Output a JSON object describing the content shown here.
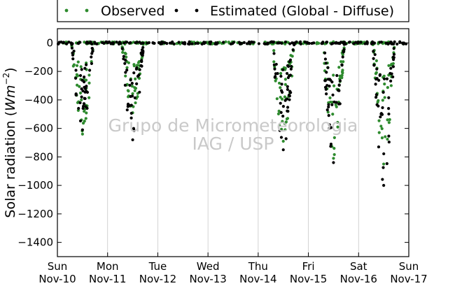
{
  "chart_data": {
    "type": "scatter",
    "title": "",
    "xlabel": "",
    "ylabel": "Solar radiation (Wm^-2)",
    "ylabel_parts": {
      "text": "Solar radiation (",
      "unit": "Wm",
      "exp": "−2",
      "close": ")"
    },
    "ylim": [
      -1500,
      100
    ],
    "xlim": [
      "2013-11-10",
      "2013-11-17"
    ],
    "grid": "vertical",
    "legend_position": "top-outside",
    "yticks": [
      0,
      -200,
      -400,
      -600,
      -800,
      -1000,
      -1200,
      -1400
    ],
    "ytick_labels": [
      "0",
      "−200",
      "−400",
      "−600",
      "−800",
      "−1000",
      "−1200",
      "−1400"
    ],
    "xticks": [
      {
        "date": "2013-11-10",
        "day": "Sun",
        "date_label": "Nov-10"
      },
      {
        "date": "2013-11-11",
        "day": "Mon",
        "date_label": "Nov-11"
      },
      {
        "date": "2013-11-12",
        "day": "Tue",
        "date_label": "Nov-12"
      },
      {
        "date": "2013-11-13",
        "day": "Wed",
        "date_label": "Nov-13"
      },
      {
        "date": "2013-11-14",
        "day": "Thu",
        "date_label": "Nov-14"
      },
      {
        "date": "2013-11-15",
        "day": "Fri",
        "date_label": "Nov-15"
      },
      {
        "date": "2013-11-16",
        "day": "Sat",
        "date_label": "Nov-16"
      },
      {
        "date": "2013-11-17",
        "day": "Sun",
        "date_label": "Nov-17"
      }
    ],
    "series": [
      {
        "name": "Observed",
        "color": "#2e8b2e",
        "daily_min": [
          {
            "date": "2013-11-10",
            "min": -640
          },
          {
            "date": "2013-11-11",
            "min": -490
          },
          {
            "date": "2013-11-12",
            "min": 0
          },
          {
            "date": "2013-11-13",
            "min": 0
          },
          {
            "date": "2013-11-14",
            "min": -690
          },
          {
            "date": "2013-11-15",
            "min": -810
          },
          {
            "date": "2013-11-16",
            "min": -850
          }
        ]
      },
      {
        "name": "Estimated (Global - Diffuse)",
        "color": "#000000",
        "daily_min": [
          {
            "date": "2013-11-10",
            "min": -610
          },
          {
            "date": "2013-11-11",
            "min": -680
          },
          {
            "date": "2013-11-12",
            "min": 0
          },
          {
            "date": "2013-11-13",
            "min": 0
          },
          {
            "date": "2013-11-14",
            "min": -750
          },
          {
            "date": "2013-11-15",
            "min": -840
          },
          {
            "date": "2013-11-16",
            "min": -1000
          }
        ]
      }
    ],
    "annotations": [
      "Grupo de Micrometeorologia",
      "IAG / USP"
    ]
  }
}
